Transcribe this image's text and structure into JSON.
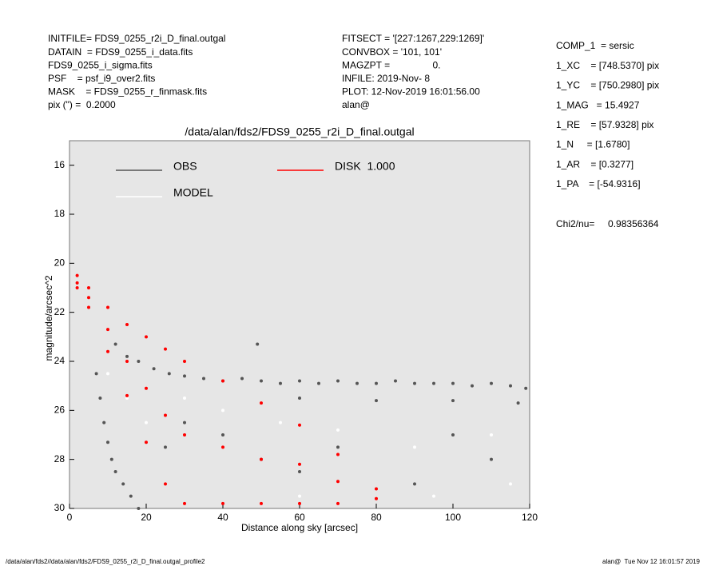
{
  "header": {
    "left": [
      "INITFILE= FDS9_0255_r2i_D_final.outgal",
      "DATAIN  = FDS9_0255_i_data.fits",
      "FDS9_0255_i_sigma.fits",
      "PSF    = psf_i9_over2.fits",
      "MASK    = FDS9_0255_r_finmask.fits",
      "pix (\") =  0.2000"
    ],
    "middle": [
      "FITSECT = '[227:1267,229:1269]'",
      "CONVBOX = '101, 101'",
      "MAGZPT =                0.",
      "INFILE: 2019-Nov- 8",
      "PLOT: 12-Nov-2019 16:01:56.00",
      "alan@"
    ],
    "right": [
      "COMP_1  = sersic",
      "1_XC    = [748.5370] pix",
      "1_YC    = [750.2980] pix",
      "1_MAG   = 15.4927",
      "1_RE    = [57.9328] pix",
      "1_N     = [1.6780]",
      "1_AR    = [0.3277]",
      "1_PA    = [-54.9316]"
    ],
    "chi": "Chi2/nu=     0.98356364"
  },
  "footer": {
    "left": "/data/alan/fds2//data/alan/fds2/FDS9_0255_r2i_D_final.outgal_profile2",
    "right": "alan@  Tue Nov 12 16:01:57 2019"
  },
  "chart_data": {
    "type": "scatter",
    "title": "/data/alan/fds2/FDS9_0255_r2i_D_final.outgal",
    "x_label": "Distance along sky [arcsec]",
    "y_label": "magnitude/arcsec^2",
    "xlim": [
      0,
      120
    ],
    "ylim": [
      30,
      15
    ],
    "xticks": [
      0,
      20,
      40,
      60,
      80,
      100,
      120
    ],
    "yticks": [
      16,
      18,
      20,
      22,
      24,
      26,
      28,
      30
    ],
    "series": [
      {
        "name": "OBS",
        "color": "#555555",
        "x": [
          12,
          15,
          18,
          22,
          26,
          30,
          35,
          40,
          45,
          50,
          55,
          60,
          65,
          70,
          75,
          80,
          85,
          90,
          95,
          100,
          105,
          110,
          115,
          119,
          49,
          60,
          80,
          100,
          117,
          7,
          8,
          9,
          10,
          11,
          12,
          14,
          16,
          18,
          30,
          40,
          50,
          60,
          70,
          90,
          110,
          100,
          25
        ],
        "values": [
          23.3,
          23.8,
          24.0,
          24.3,
          24.5,
          24.6,
          24.7,
          24.8,
          24.7,
          24.8,
          24.9,
          24.8,
          24.9,
          24.8,
          24.9,
          24.9,
          24.8,
          24.9,
          24.9,
          24.9,
          25.0,
          24.9,
          25.0,
          25.1,
          23.3,
          25.5,
          25.6,
          25.6,
          25.7,
          24.5,
          25.5,
          26.5,
          27.3,
          28,
          28.5,
          29,
          29.5,
          30,
          26.5,
          27,
          28,
          28.5,
          27.5,
          29,
          28,
          27,
          27.5
        ]
      },
      {
        "name": "MODEL",
        "color": "#ffffff",
        "x": [
          10,
          15,
          20,
          30,
          40,
          55,
          70,
          90,
          110,
          115,
          95,
          60
        ],
        "values": [
          24.5,
          25.5,
          26.5,
          25.5,
          26,
          26.5,
          26.8,
          27.5,
          27,
          29,
          29.5,
          29.5
        ]
      },
      {
        "name": "DISK  1.000",
        "color": "#ff0000",
        "x": [
          2,
          2,
          2,
          5,
          5,
          5,
          10,
          10,
          10,
          15,
          15,
          15,
          20,
          20,
          20,
          25,
          25,
          25,
          30,
          30,
          30,
          40,
          40,
          40,
          50,
          50,
          50,
          60,
          60,
          60,
          70,
          70,
          70,
          80,
          80
        ],
        "values": [
          20.5,
          20.8,
          21.0,
          21.0,
          21.4,
          21.8,
          21.8,
          22.7,
          23.6,
          22.5,
          24.0,
          25.4,
          23.0,
          25.1,
          27.3,
          23.5,
          26.2,
          29.0,
          24.0,
          27.0,
          29.8,
          24.8,
          27.5,
          29.8,
          25.7,
          28.0,
          29.8,
          26.6,
          28.2,
          29.8,
          27.8,
          28.9,
          29.8,
          29.2,
          29.6
        ]
      }
    ]
  }
}
